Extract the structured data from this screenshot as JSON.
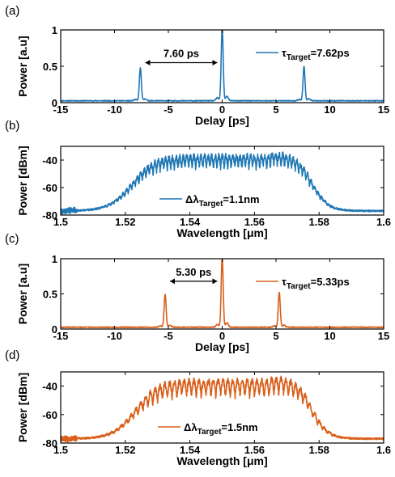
{
  "chart_data": [
    {
      "panel": "(a)",
      "type": "line",
      "xlabel": "Delay [ps]",
      "ylabel": "Power [a.u]",
      "xlim": [
        -15,
        15
      ],
      "ylim": [
        0,
        1
      ],
      "xticks": [
        -15,
        -10,
        -5,
        0,
        5,
        10,
        15
      ],
      "yticks": [
        0,
        0.5,
        1
      ],
      "color": "#1f77b4",
      "legend": {
        "prefix": "τ",
        "sub": "Target",
        "suffix": "=7.62ps",
        "location": "upper-right"
      },
      "annotation": {
        "text": "7.60 ps",
        "x_from": -7.6,
        "x_to": 0.0,
        "y": 0.55
      },
      "peaks": [
        {
          "x": -7.6,
          "height": 0.45
        },
        {
          "x": 0.0,
          "height": 1.0
        },
        {
          "x": 7.6,
          "height": 0.47
        }
      ]
    },
    {
      "panel": "(b)",
      "type": "line",
      "xlabel": "Wavelength [μm]",
      "ylabel": "Power [dBm]",
      "xlim": [
        1.5,
        1.6
      ],
      "ylim": [
        -80,
        -30
      ],
      "xticks": [
        1.5,
        1.52,
        1.54,
        1.56,
        1.58,
        1.6
      ],
      "yticks": [
        -80,
        -60,
        -40
      ],
      "color": "#1f77b4",
      "legend": {
        "prefix": "Δλ",
        "sub": "Target",
        "suffix": "=1.1nm",
        "location": "lower-center"
      },
      "spectrum": {
        "floor": -77,
        "top": -37,
        "edge_low": 1.522,
        "edge_high": 1.578,
        "fringe_period": 0.0011,
        "ripple": 7
      }
    },
    {
      "panel": "(c)",
      "type": "line",
      "xlabel": "Delay [ps]",
      "ylabel": "Power [a.u]",
      "xlim": [
        -15,
        15
      ],
      "ylim": [
        0,
        1
      ],
      "xticks": [
        -15,
        -10,
        -5,
        0,
        5,
        10,
        15
      ],
      "yticks": [
        0,
        0.5,
        1
      ],
      "color": "#d95f1a",
      "legend": {
        "prefix": "τ",
        "sub": "Target",
        "suffix": "=5.33ps",
        "location": "upper-right"
      },
      "annotation": {
        "text": "5.30 ps",
        "x_from": -5.3,
        "x_to": 0.0,
        "y": 0.68
      },
      "peaks": [
        {
          "x": -5.3,
          "height": 0.47
        },
        {
          "x": 0.0,
          "height": 1.0
        },
        {
          "x": 5.3,
          "height": 0.5
        }
      ]
    },
    {
      "panel": "(d)",
      "type": "line",
      "xlabel": "Wavelength [μm]",
      "ylabel": "Power [dBm]",
      "xlim": [
        1.5,
        1.6
      ],
      "ylim": [
        -80,
        -30
      ],
      "xticks": [
        1.5,
        1.52,
        1.54,
        1.56,
        1.58,
        1.6
      ],
      "yticks": [
        -80,
        -60,
        -40
      ],
      "color": "#d95f1a",
      "legend": {
        "prefix": "Δλ",
        "sub": "Target",
        "suffix": "=1.5nm",
        "location": "lower-left"
      },
      "spectrum": {
        "floor": -77,
        "top": -36,
        "edge_low": 1.523,
        "edge_high": 1.578,
        "fringe_period": 0.0015,
        "ripple": 9
      }
    }
  ]
}
